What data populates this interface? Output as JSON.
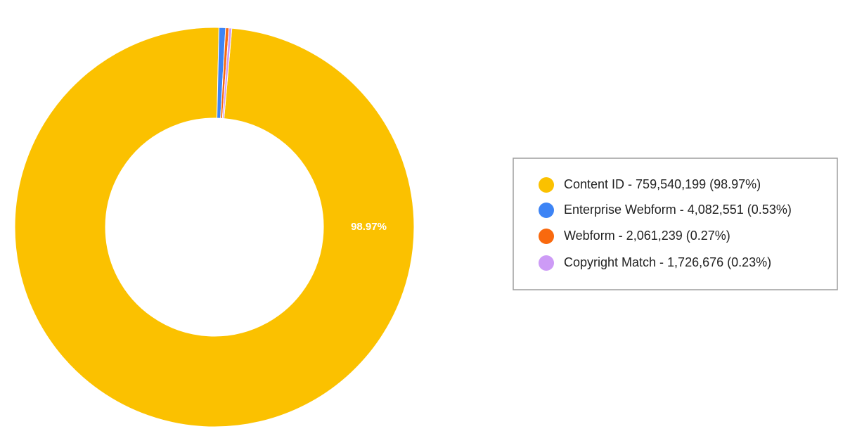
{
  "chart_data": {
    "type": "pie",
    "categories": [
      "Content ID - 759,540,199 (98.97%)",
      "Enterprise Webform - 4,082,551 (0.53%)",
      "Webform - 2,061,239 (0.27%)",
      "Copyright Match - 1,726,676 (0.23%)"
    ],
    "values": [
      759540199,
      4082551,
      2061239,
      1726676
    ],
    "percentages": [
      98.97,
      0.53,
      0.27,
      0.23
    ],
    "percentage_labels": [
      "98.97%",
      null,
      null,
      null
    ],
    "colors": [
      "#fbc100",
      "#3d84f5",
      "#f9690e",
      "#cd9bf6"
    ],
    "donut": true,
    "legend": "right"
  }
}
